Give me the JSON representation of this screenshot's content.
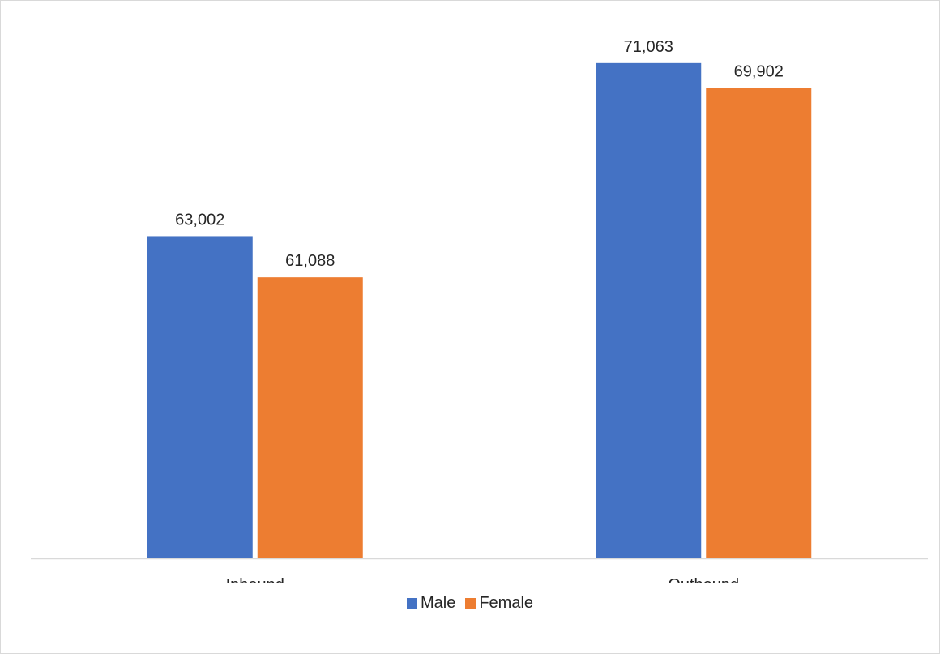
{
  "chart_data": {
    "type": "bar",
    "categories": [
      "Inbound",
      "Outbound"
    ],
    "series": [
      {
        "name": "Male",
        "values": [
          63002,
          71063
        ],
        "labels": [
          "63,002",
          "71,063"
        ],
        "color": "#4472C4"
      },
      {
        "name": "Female",
        "values": [
          61088,
          69902
        ],
        "labels": [
          "61,088",
          "69,902"
        ],
        "color": "#ED7D31"
      }
    ],
    "title": "",
    "xlabel": "",
    "ylabel": "",
    "ylim": [
      48000,
      74000
    ],
    "grid": false,
    "legend": "bottom",
    "axis_color": "#d9d9d9"
  }
}
